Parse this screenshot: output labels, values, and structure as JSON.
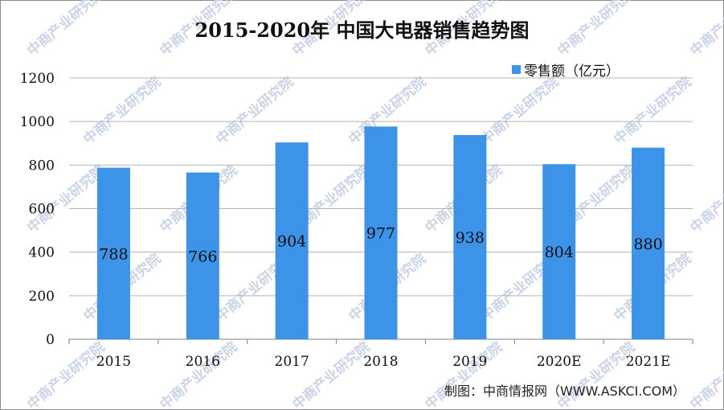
{
  "watermark": "中商产业研究院",
  "credit": "制图：中商情报网（WWW.ASKCI.COM）",
  "colors": {
    "bar": "#3d93e8",
    "grid": "#b5b5b5",
    "axis": "#7f7f7f"
  },
  "chart_data": {
    "type": "bar",
    "title": "2015-2020年 中国大电器销售趋势图",
    "categories": [
      "2015",
      "2016",
      "2017",
      "2018",
      "2019",
      "2020E",
      "2021E"
    ],
    "series": [
      {
        "name": "零售额（亿元）",
        "values": [
          788,
          766,
          904,
          977,
          938,
          804,
          880
        ]
      }
    ],
    "data_labels": [
      "788",
      "766",
      "904",
      "977",
      "938",
      "804",
      "880"
    ],
    "ylim": [
      0,
      1200
    ],
    "yticks": [
      "0",
      "200",
      "400",
      "600",
      "800",
      "1000",
      "1200"
    ],
    "grid": true,
    "legend": "top-right"
  }
}
